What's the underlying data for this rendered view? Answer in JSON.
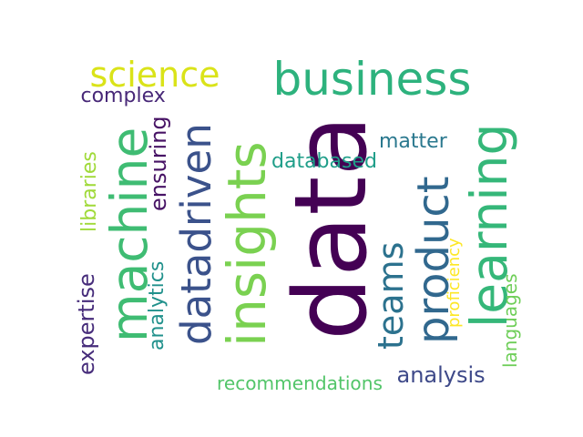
{
  "words": [
    {
      "text": "data",
      "color": "#440154",
      "rotated": true
    },
    {
      "text": "business",
      "color": "#2db27d",
      "rotated": false
    },
    {
      "text": "science",
      "color": "#dae319",
      "rotated": false
    },
    {
      "text": "machine",
      "color": "#3fbc73",
      "rotated": true
    },
    {
      "text": "datadriven",
      "color": "#3b528b",
      "rotated": true
    },
    {
      "text": "insights",
      "color": "#7ad151",
      "rotated": true
    },
    {
      "text": "learning",
      "color": "#35b779",
      "rotated": true
    },
    {
      "text": "product",
      "color": "#31688e",
      "rotated": true
    },
    {
      "text": "teams",
      "color": "#2c728e",
      "rotated": true
    },
    {
      "text": "complex",
      "color": "#482878",
      "rotated": false
    },
    {
      "text": "ensuring",
      "color": "#471365",
      "rotated": true
    },
    {
      "text": "libraries",
      "color": "#a0da39",
      "rotated": true
    },
    {
      "text": "matter",
      "color": "#2a788e",
      "rotated": false
    },
    {
      "text": "databased",
      "color": "#1f9e89",
      "rotated": false
    },
    {
      "text": "expertise",
      "color": "#472d7b",
      "rotated": true
    },
    {
      "text": "analytics",
      "color": "#21918c",
      "rotated": true
    },
    {
      "text": "proficiency",
      "color": "#fde725",
      "rotated": true
    },
    {
      "text": "languages",
      "color": "#6ece58",
      "rotated": true
    },
    {
      "text": "analysis",
      "color": "#3e4989",
      "rotated": false
    },
    {
      "text": "recommendations",
      "color": "#52c569",
      "rotated": false
    }
  ]
}
